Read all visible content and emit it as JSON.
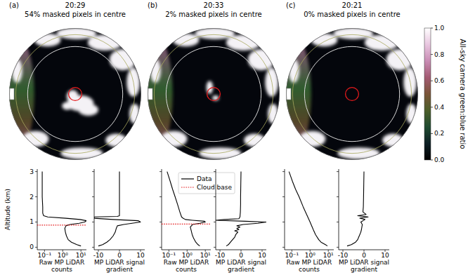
{
  "panels": [
    {
      "letter": "(a)",
      "time": "20:29",
      "caption": "54% masked pixels in centre"
    },
    {
      "letter": "(b)",
      "time": "20:33",
      "caption": "2% masked pixels in centre"
    },
    {
      "letter": "(c)",
      "time": "20:21",
      "caption": "0% masked pixels in centre"
    }
  ],
  "colorbar": {
    "label": "All-sky camera green:blue ratio",
    "range": [
      0,
      1
    ],
    "ticks": [
      {
        "value": 0,
        "label": "0.0"
      },
      {
        "value": 0.2,
        "label": "0.2"
      },
      {
        "value": 0.4,
        "label": "0.4"
      },
      {
        "value": 0.6,
        "label": "0.6"
      },
      {
        "value": 0.8,
        "label": "0.8"
      },
      {
        "value": 1,
        "label": "1.0"
      }
    ],
    "colors": [
      "#000000",
      "#0d1f24",
      "#1f4a30",
      "#4b5e2a",
      "#7a5538",
      "#a35a72",
      "#c98cb4",
      "#e8c6df",
      "#ffffff"
    ]
  },
  "chart_data": [
    {
      "type": "line",
      "xlabel": "Raw MP LiDAR counts",
      "ylabel": "Altitude (km)",
      "log": "x",
      "xlim": [
        0.04,
        20
      ],
      "xticks": [
        {
          "value": 0.1,
          "label": "10⁻¹"
        },
        {
          "value": 1,
          "label": "10⁰"
        },
        {
          "value": 10,
          "label": "10¹"
        }
      ],
      "ylim": [
        -0.1,
        3.1
      ],
      "yticks": [
        0,
        1,
        2,
        3
      ],
      "series": [
        {
          "name": "Data",
          "color": "#000000",
          "line_style": "solid",
          "x": [
            10,
            6,
            3,
            2,
            1.6,
            1.4,
            1.3,
            1.5,
            2.5,
            8,
            16,
            20,
            9,
            1.5,
            0.15,
            0.09,
            0.08,
            0.08,
            0.075,
            0.075,
            0.075
          ],
          "values": [
            0.05,
            0.1,
            0.2,
            0.3,
            0.45,
            0.6,
            0.75,
            0.85,
            0.9,
            0.95,
            1.0,
            1.05,
            1.1,
            1.15,
            1.2,
            1.25,
            1.35,
            1.6,
            2.0,
            2.5,
            3.0
          ]
        },
        {
          "name": "Cloud base",
          "color": "#e41a1c",
          "line_style": "dotted",
          "x": [
            0.04,
            20
          ],
          "values": [
            0.88,
            0.88
          ]
        }
      ]
    },
    {
      "type": "line",
      "xlabel": "MP LiDAR signal gradient",
      "xlim": [
        -12,
        12
      ],
      "xticks": [
        -10,
        0,
        10
      ],
      "ylim": [
        -0.1,
        3.1
      ],
      "yticks": [
        0,
        1,
        2,
        3
      ],
      "tick_labels": "x",
      "series": [
        {
          "name": "Data",
          "color": "#000000",
          "line_style": "solid",
          "x": [
            -10,
            -8,
            -6,
            -4.5,
            -3,
            -2,
            -1.5,
            -1,
            2,
            6,
            10,
            9,
            -3,
            -12,
            -12,
            -1,
            0,
            0,
            0,
            0,
            0,
            0
          ],
          "values": [
            0.05,
            0.1,
            0.2,
            0.3,
            0.45,
            0.6,
            0.75,
            0.85,
            0.9,
            0.95,
            1.0,
            1.05,
            1.1,
            1.15,
            1.2,
            1.22,
            1.25,
            1.3,
            1.6,
            2.0,
            2.5,
            3.0
          ]
        }
      ]
    },
    {
      "type": "line",
      "xlabel": "Raw MP LiDAR counts",
      "log": "x",
      "legend": "upper right",
      "xlim": [
        0.04,
        20
      ],
      "xticks": [
        {
          "value": 0.1,
          "label": "10⁻¹"
        },
        {
          "value": 1,
          "label": "10⁰"
        },
        {
          "value": 10,
          "label": "10¹"
        }
      ],
      "ylim": [
        -0.1,
        3.1
      ],
      "yticks": [
        0,
        1,
        2,
        3
      ],
      "tick_labels": "x",
      "series": [
        {
          "name": "Data",
          "color": "#000000",
          "line_style": "solid",
          "x": [
            5,
            4,
            3,
            2.3,
            1.9,
            1.7,
            1.5,
            2,
            5,
            10,
            9,
            2,
            0.8,
            0.6,
            0.5,
            0.4,
            0.3,
            0.22,
            0.16,
            0.12,
            0.08
          ],
          "values": [
            0.05,
            0.1,
            0.2,
            0.35,
            0.5,
            0.65,
            0.8,
            0.9,
            0.95,
            1.0,
            1.03,
            1.07,
            1.1,
            1.15,
            1.2,
            1.4,
            1.7,
            2.0,
            2.3,
            2.6,
            3.0
          ]
        },
        {
          "name": "Cloud base",
          "color": "#e41a1c",
          "line_style": "dotted",
          "x": [
            0.04,
            20
          ],
          "values": [
            0.92,
            0.92
          ]
        }
      ]
    },
    {
      "type": "line",
      "xlabel": "MP LiDAR signal gradient",
      "xlim": [
        -12,
        12
      ],
      "xticks": [
        -10,
        0,
        10
      ],
      "ylim": [
        -0.1,
        3.1
      ],
      "yticks": [
        0,
        1,
        2,
        3
      ],
      "tick_labels": "x",
      "series": [
        {
          "name": "Data",
          "color": "#000000",
          "line_style": "solid",
          "x": [
            -7,
            -6,
            -5,
            -4,
            -3,
            -2.5,
            -1.5,
            -3,
            -1,
            -2,
            -0.5,
            -2,
            1,
            8,
            12,
            2,
            -12,
            -8,
            -1,
            -0.5,
            -0.3,
            -0.2,
            -0.2,
            -0.1,
            0
          ],
          "values": [
            0.05,
            0.1,
            0.2,
            0.3,
            0.4,
            0.5,
            0.6,
            0.65,
            0.7,
            0.75,
            0.8,
            0.85,
            0.9,
            0.95,
            1.0,
            1.03,
            1.07,
            1.1,
            1.13,
            1.2,
            1.4,
            1.7,
            2.0,
            2.5,
            3.0
          ]
        }
      ]
    },
    {
      "type": "line",
      "xlabel": "Raw MP LiDAR counts",
      "log": "x",
      "xlim": [
        0.04,
        20
      ],
      "xticks": [
        {
          "value": 0.1,
          "label": "10⁻¹"
        },
        {
          "value": 1,
          "label": "10⁰"
        },
        {
          "value": 10,
          "label": "10¹"
        }
      ],
      "ylim": [
        -0.1,
        3.1
      ],
      "yticks": [
        0,
        1,
        2,
        3
      ],
      "tick_labels": "x",
      "series": [
        {
          "name": "Data",
          "color": "#000000",
          "line_style": "solid",
          "x": [
            9,
            7,
            4,
            3,
            2,
            1.5,
            1,
            0.65,
            0.42,
            0.25,
            0.16,
            0.11,
            0.07
          ],
          "values": [
            0.05,
            0.1,
            0.2,
            0.3,
            0.5,
            0.7,
            1.0,
            1.3,
            1.6,
            2.0,
            2.3,
            2.6,
            3.0
          ]
        }
      ]
    },
    {
      "type": "line",
      "xlabel": "MP LiDAR signal gradient",
      "xlim": [
        -12,
        12
      ],
      "xticks": [
        -10,
        0,
        10
      ],
      "ylim": [
        -0.1,
        3.1
      ],
      "yticks": [
        0,
        1,
        2,
        3
      ],
      "tick_labels": "x",
      "series": [
        {
          "name": "Data",
          "color": "#000000",
          "line_style": "solid",
          "x": [
            -8,
            -6,
            -4,
            -3,
            -2.5,
            -2,
            -1.5,
            -1.2,
            -1,
            -0.8,
            -1.5,
            0.5,
            -2,
            2,
            -3,
            1,
            -0.5,
            -0.3,
            -0.2,
            -0.1,
            0
          ],
          "values": [
            0.05,
            0.1,
            0.2,
            0.3,
            0.4,
            0.5,
            0.6,
            0.7,
            0.8,
            0.9,
            1.0,
            1.1,
            1.15,
            1.2,
            1.25,
            1.3,
            1.4,
            1.6,
            2.0,
            2.5,
            3.0
          ]
        }
      ]
    }
  ]
}
